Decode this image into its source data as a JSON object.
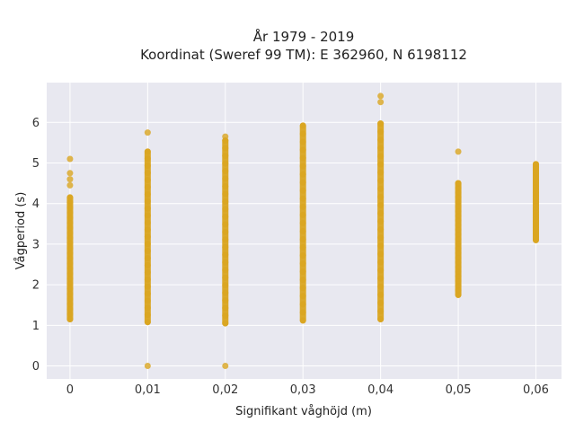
{
  "chart_data": {
    "type": "scatter",
    "title": "År 1979 - 2019",
    "subtitle": "Koordinat (Sweref 99 TM): E 362960, N 6198112",
    "xlabel": "Signifikant våghöjd (m)",
    "ylabel": "Vågperiod (s)",
    "xlim": [
      -0.003,
      0.0633
    ],
    "ylim": [
      -0.32,
      6.98
    ],
    "x_ticks": [
      "0",
      "0,01",
      "0,02",
      "0,03",
      "0,04",
      "0,05",
      "0,06"
    ],
    "y_ticks": [
      "0",
      "1",
      "2",
      "3",
      "4",
      "5",
      "6"
    ],
    "grid": true,
    "marker_color": "#DAA520",
    "background_color": "#E8E8F0",
    "columns": [
      {
        "x": 0.0,
        "y_min": 1.15,
        "y_max": 4.15,
        "outliers": [
          4.45,
          4.6,
          4.75,
          5.1
        ]
      },
      {
        "x": 0.01,
        "y_min": 1.08,
        "y_max": 5.28,
        "outliers": [
          0.0,
          5.75
        ]
      },
      {
        "x": 0.02,
        "y_min": 1.05,
        "y_max": 5.55,
        "outliers": [
          0.0,
          5.65
        ]
      },
      {
        "x": 0.03,
        "y_min": 1.12,
        "y_max": 5.92,
        "outliers": []
      },
      {
        "x": 0.04,
        "y_min": 1.15,
        "y_max": 5.97,
        "outliers": [
          6.5,
          6.65
        ]
      },
      {
        "x": 0.05,
        "y_min": 1.75,
        "y_max": 4.5,
        "outliers": [
          5.28
        ]
      },
      {
        "x": 0.06,
        "y_min": 3.1,
        "y_max": 4.97,
        "outliers": []
      }
    ]
  }
}
